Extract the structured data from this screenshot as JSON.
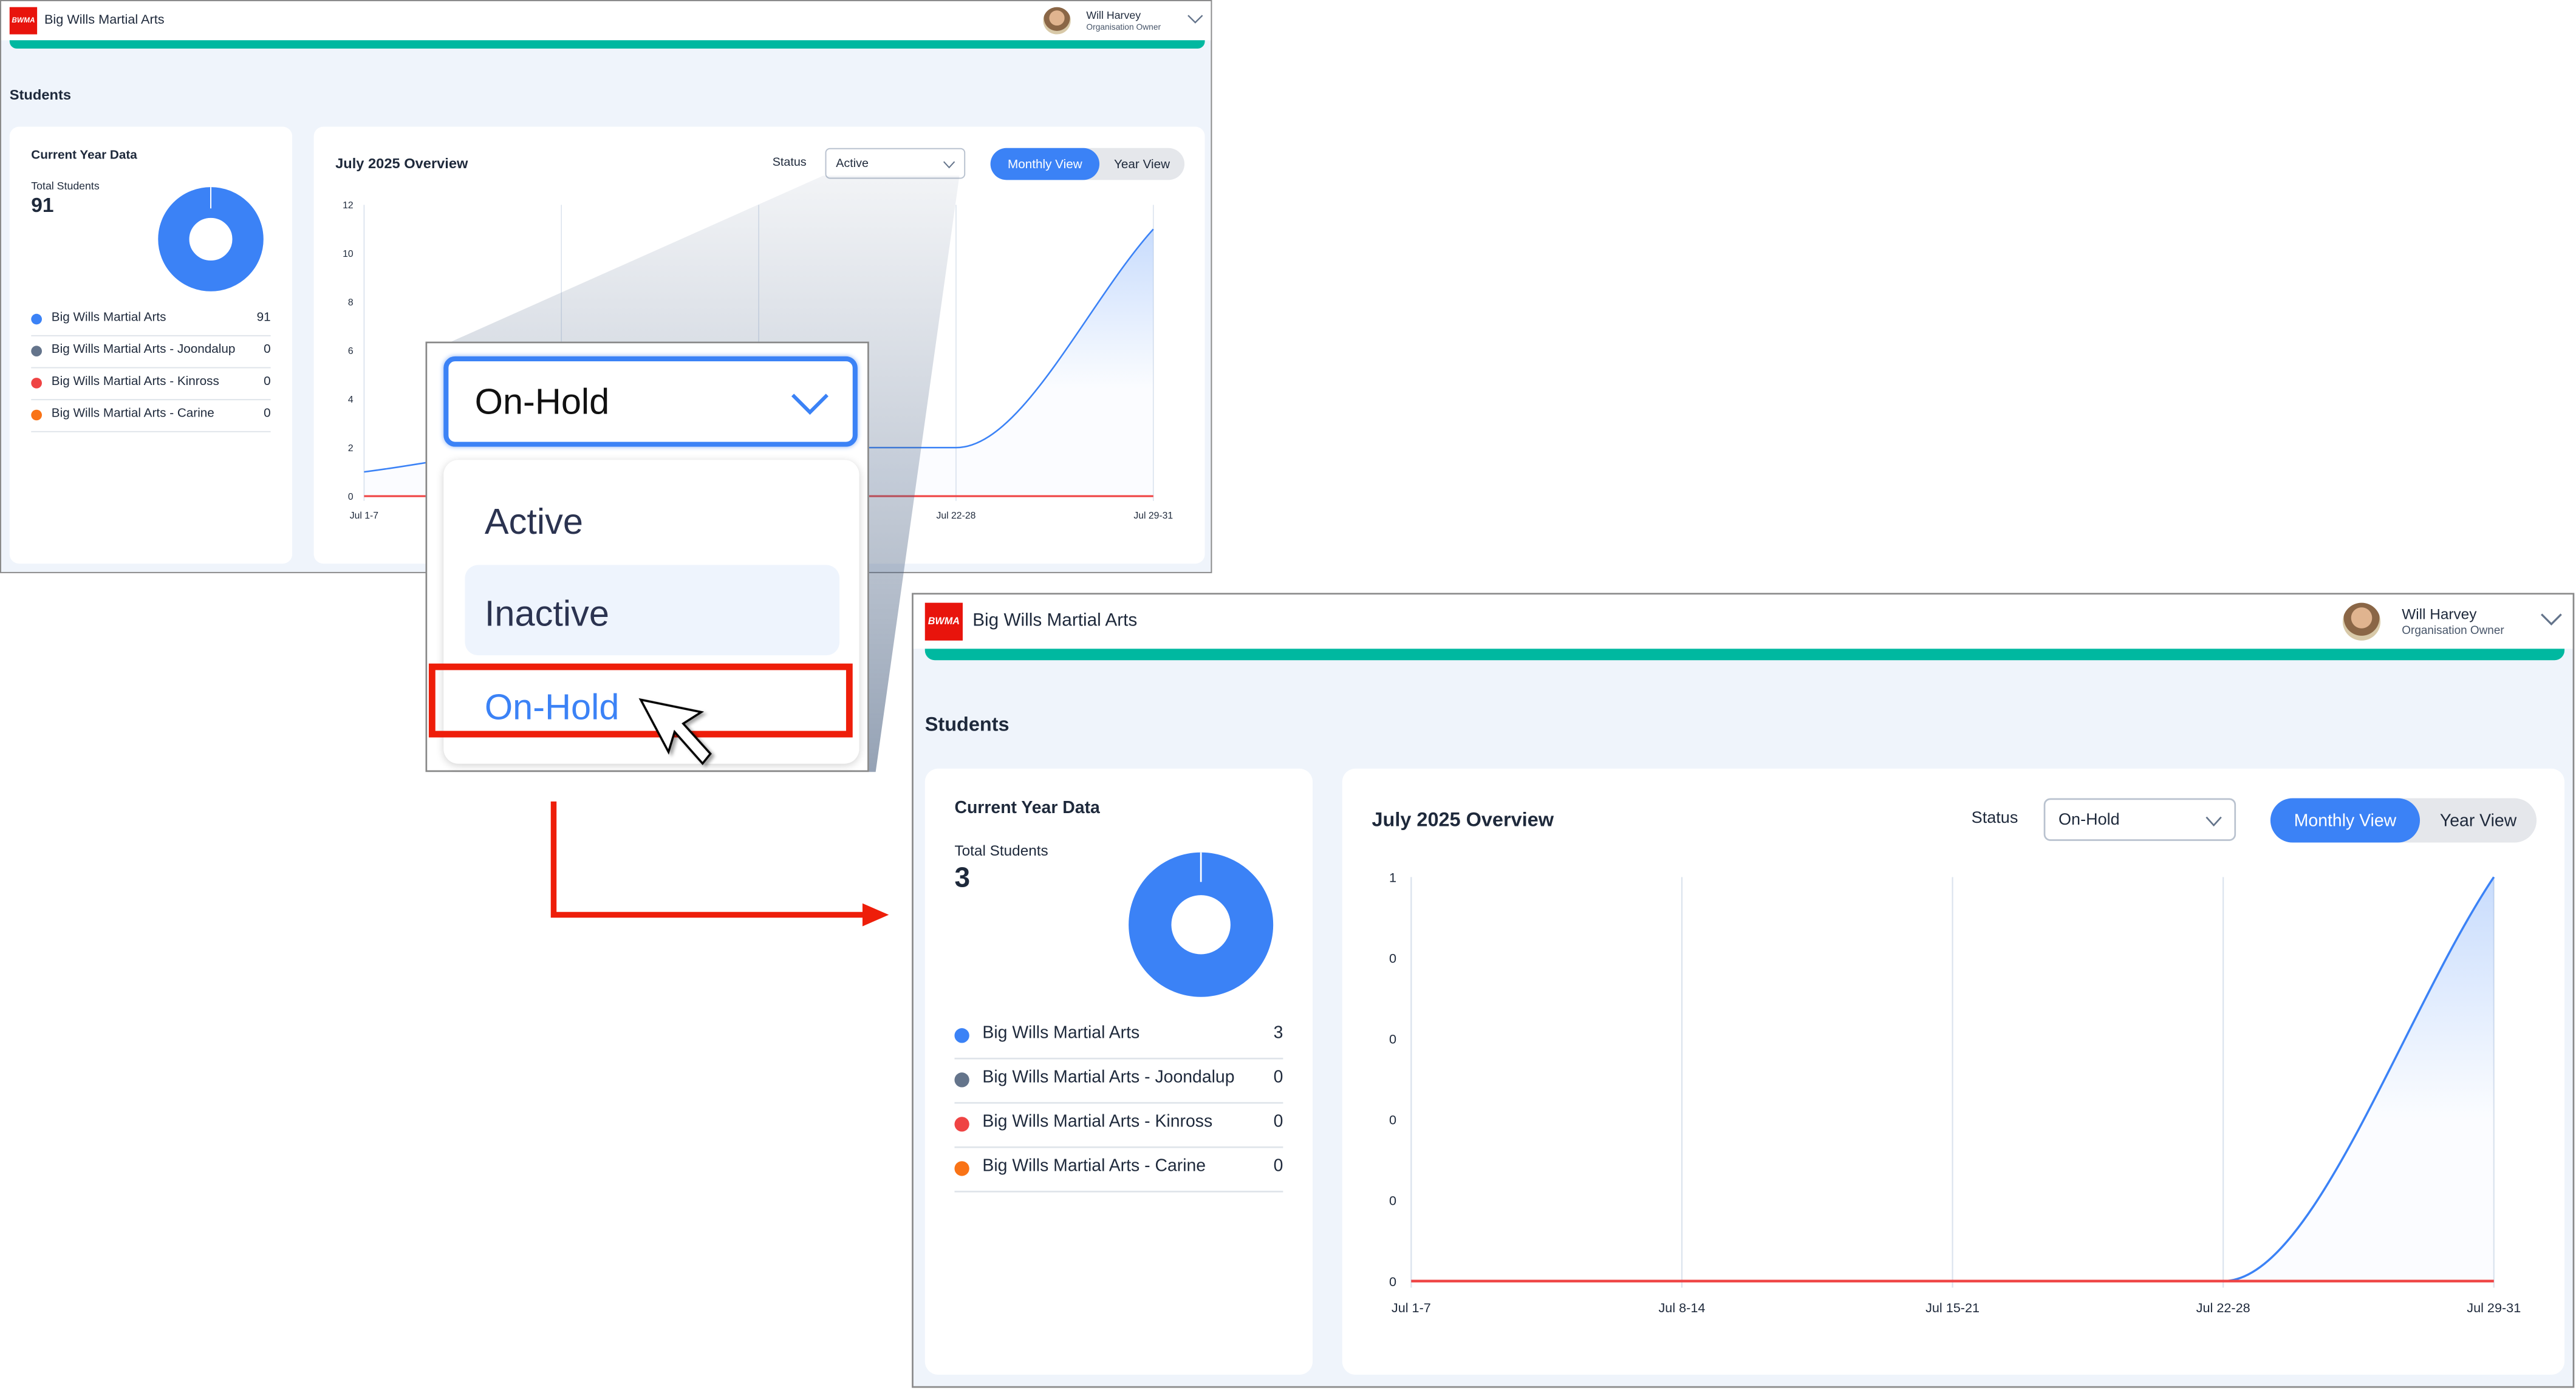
{
  "screens": [
    {
      "logo_text": "BWMA",
      "org_name": "Big Wills Martial Arts",
      "user": {
        "name": "Will Harvey",
        "role": "Organisation Owner"
      },
      "page_title": "Students",
      "summary": {
        "title": "Current Year Data",
        "total_label": "Total Students",
        "total": "91",
        "locations": [
          {
            "name": "Big Wills Martial Arts",
            "count": "91",
            "color": "#3b82f6"
          },
          {
            "name": "Big Wills Martial Arts - Joondalup",
            "count": "0",
            "color": "#64748b"
          },
          {
            "name": "Big Wills Martial Arts - Kinross",
            "count": "0",
            "color": "#ef4444"
          },
          {
            "name": "Big Wills Martial Arts - Carine",
            "count": "0",
            "color": "#f97316"
          }
        ]
      },
      "overview": {
        "title": "July 2025 Overview",
        "status_label": "Status",
        "status_value": "Active",
        "views": [
          "Monthly View",
          "Year View"
        ],
        "active_view": "Monthly View"
      }
    },
    {
      "logo_text": "BWMA",
      "org_name": "Big Wills Martial Arts",
      "user": {
        "name": "Will Harvey",
        "role": "Organisation Owner"
      },
      "page_title": "Students",
      "summary": {
        "title": "Current Year Data",
        "total_label": "Total Students",
        "total": "3",
        "locations": [
          {
            "name": "Big Wills Martial Arts",
            "count": "3",
            "color": "#3b82f6"
          },
          {
            "name": "Big Wills Martial Arts - Joondalup",
            "count": "0",
            "color": "#64748b"
          },
          {
            "name": "Big Wills Martial Arts - Kinross",
            "count": "0",
            "color": "#ef4444"
          },
          {
            "name": "Big Wills Martial Arts - Carine",
            "count": "0",
            "color": "#f97316"
          }
        ]
      },
      "overview": {
        "title": "July 2025 Overview",
        "status_label": "Status",
        "status_value": "On-Hold",
        "views": [
          "Monthly View",
          "Year View"
        ],
        "active_view": "Monthly View"
      }
    }
  ],
  "status_dropdown_callout": {
    "selected": "On-Hold",
    "options": [
      "Active",
      "Inactive",
      "On-Hold"
    ],
    "hovered": "Inactive",
    "highlighted": "On-Hold"
  },
  "colors": {
    "accent": "#3b82f6",
    "teal_bar": "#00b8a0",
    "annotation_red": "#ee1e0a"
  },
  "chart_data": [
    {
      "type": "line",
      "categories": [
        "Jul 1-7",
        "Jul 8-14",
        "Jul 15-21",
        "Jul 22-28",
        "Jul 29-31"
      ],
      "visible_x_tick_labels": [
        "Jul 1-7",
        "",
        "",
        "Jul 22-28",
        "Jul 29-31"
      ],
      "series": [
        {
          "values": [
            1,
            2,
            2,
            2,
            11
          ],
          "color": "#3b82f6",
          "fill": true
        },
        {
          "values": [
            0,
            0,
            0,
            0,
            0
          ],
          "color": "#ef4444",
          "fill": false
        }
      ],
      "ylim": [
        0,
        12
      ],
      "y_ticks": [
        0,
        2,
        4,
        6,
        8,
        10,
        12
      ],
      "y_tick_labels": [
        "0",
        "2",
        "4",
        "6",
        "8",
        "10",
        "12"
      ],
      "grid": "vertical"
    },
    {
      "type": "line",
      "categories": [
        "Jul 1-7",
        "Jul 8-14",
        "Jul 15-21",
        "Jul 22-28",
        "Jul 29-31"
      ],
      "visible_x_tick_labels": [
        "Jul 1-7",
        "Jul 8-14",
        "Jul 15-21",
        "Jul 22-28",
        "Jul 29-31"
      ],
      "series": [
        {
          "values": [
            0,
            0,
            0,
            0,
            1
          ],
          "color": "#3b82f6",
          "fill": true
        },
        {
          "values": [
            0,
            0,
            0,
            0,
            0
          ],
          "color": "#ef4444",
          "fill": false
        }
      ],
      "ylim": [
        0,
        1
      ],
      "y_ticks": [
        0,
        0.2,
        0.4,
        0.6,
        0.8,
        1
      ],
      "y_tick_labels": [
        "0",
        "0",
        "0",
        "0",
        "0",
        "1"
      ],
      "grid": "vertical"
    }
  ]
}
